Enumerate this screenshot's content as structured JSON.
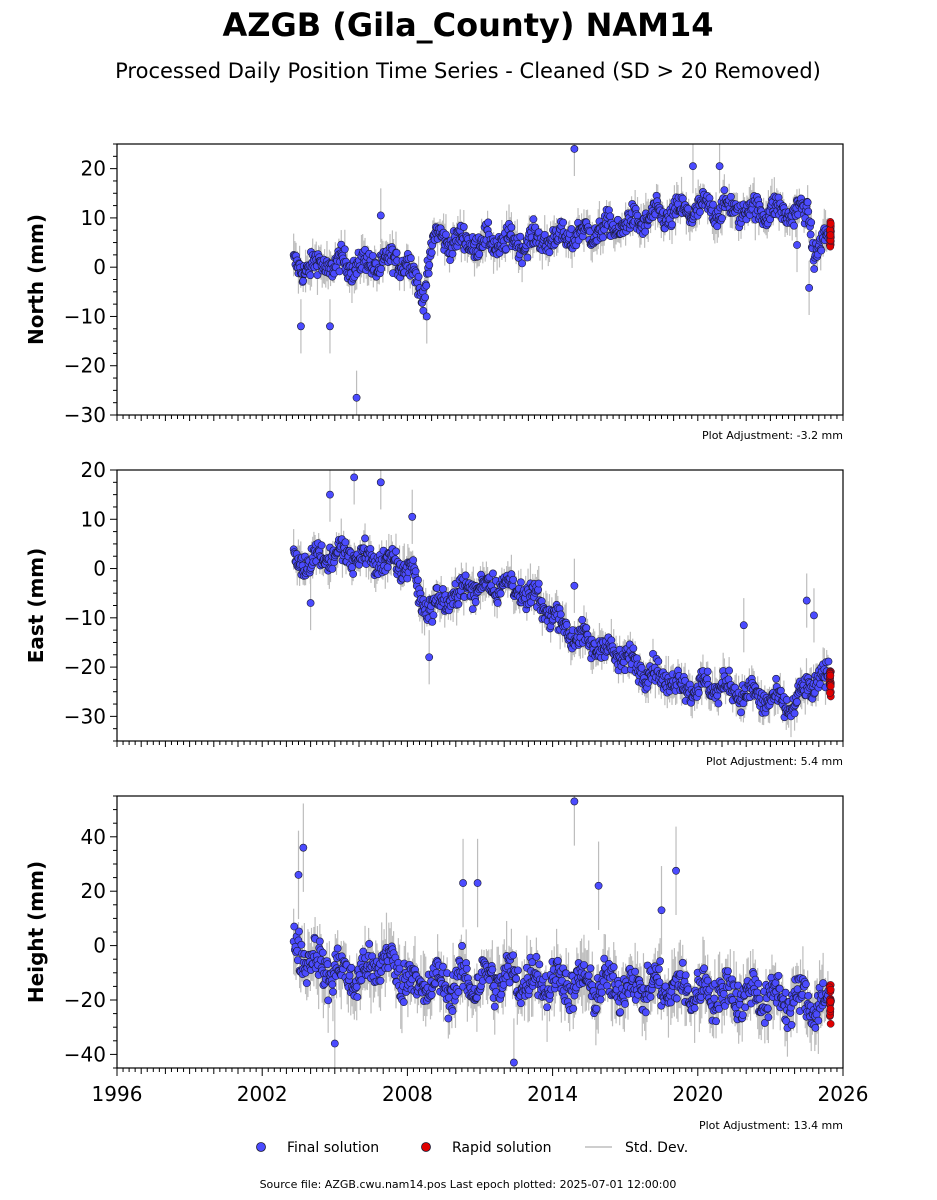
{
  "title": "AZGB (Gila_County) NAM14",
  "subtitle": "Processed Daily Position Time Series - Cleaned (SD > 20 Removed)",
  "source_note": "Source file: AZGB.cwu.nam14.pos  Last epoch plotted: 2025-07-01 12:00:00",
  "legend": {
    "final": "Final solution",
    "rapid": "Rapid solution",
    "std": "Std. Dev."
  },
  "colors": {
    "final": "#4b4bff",
    "rapid": "#e00000",
    "std": "#bdbdbd",
    "edge": "#1a1a33"
  },
  "chart_data": [
    {
      "type": "scatter",
      "ylabel": "North (mm)",
      "ylim": [
        -30,
        25
      ],
      "yticks": [
        -30,
        -20,
        -10,
        0,
        10,
        20
      ],
      "xlim": [
        1996,
        2026
      ],
      "adjustment": "Plot Adjustment: -3.2 mm",
      "series": [
        {
          "name": "Final solution",
          "segments": [
            {
              "x": [
                2003.3,
                2005.0,
                2006.5,
                2008.0,
                2008.6,
                2009.1,
                2010.5,
                2012.5,
                2014.5,
                2016.5,
                2018.5,
                2020.5,
                2022.5,
                2024.6,
                2024.8,
                2025.4
              ],
              "y": [
                0.0,
                0.5,
                0.5,
                1.5,
                -6.0,
                6.0,
                5.0,
                5.0,
                6.0,
                8.0,
                10.5,
                12.0,
                11.5,
                11.0,
                3.0,
                6.0
              ]
            }
          ],
          "noise": 2.2
        },
        {
          "name": "Rapid solution",
          "x": [
            2025.45,
            2025.5
          ],
          "y": [
            7.0,
            7.0
          ],
          "noise": 1.2
        }
      ],
      "outliers": [
        [
          2005.9,
          -26.5
        ],
        [
          2014.9,
          24.0
        ],
        [
          2003.6,
          -12.0
        ],
        [
          2004.8,
          -12.0
        ],
        [
          2006.9,
          10.5
        ],
        [
          2019.8,
          20.5
        ],
        [
          2020.9,
          20.5
        ],
        [
          2024.1,
          4.5
        ],
        [
          2024.6,
          -4.2
        ],
        [
          2008.8,
          -10.0
        ]
      ]
    },
    {
      "type": "scatter",
      "ylabel": "East (mm)",
      "ylim": [
        -35,
        20
      ],
      "yticks": [
        -30,
        -20,
        -10,
        0,
        10,
        20
      ],
      "xlim": [
        1996,
        2026
      ],
      "adjustment": "Plot Adjustment: 5.4 mm",
      "series": [
        {
          "name": "Final solution",
          "segments": [
            {
              "x": [
                2003.3,
                2005.0,
                2006.5,
                2008.2,
                2008.5,
                2009.0,
                2010.5,
                2012.0,
                2013.5,
                2015.0,
                2016.5,
                2018.0,
                2019.5,
                2021.0,
                2022.5,
                2024.0,
                2024.5,
                2025.4
              ],
              "y": [
                1.0,
                3.0,
                2.0,
                0.0,
                -6.0,
                -8.0,
                -4.0,
                -3.0,
                -7.0,
                -14.0,
                -17.0,
                -21.0,
                -24.0,
                -24.0,
                -26.0,
                -28.0,
                -24.0,
                -22.0
              ]
            }
          ],
          "noise": 2.2
        },
        {
          "name": "Rapid solution",
          "x": [
            2025.45,
            2025.5
          ],
          "y": [
            -23.0,
            -23.0
          ],
          "noise": 1.2
        }
      ],
      "outliers": [
        [
          2006.9,
          17.5
        ],
        [
          2005.8,
          18.5
        ],
        [
          2004.8,
          15.0
        ],
        [
          2008.2,
          10.5
        ],
        [
          2008.9,
          -18.0
        ],
        [
          2014.9,
          -3.5
        ],
        [
          2021.9,
          -11.5
        ],
        [
          2024.5,
          -6.5
        ],
        [
          2024.8,
          -9.5
        ],
        [
          2004.0,
          -7.0
        ]
      ]
    },
    {
      "type": "scatter",
      "ylabel": "Height (mm)",
      "ylim": [
        -45,
        55
      ],
      "yticks": [
        -40,
        -20,
        0,
        20,
        40
      ],
      "xlim": [
        1996,
        2026
      ],
      "xticks": [
        1996,
        2002,
        2008,
        2014,
        2020,
        2026
      ],
      "adjustment": "Plot Adjustment: 13.4 mm",
      "series": [
        {
          "name": "Final solution",
          "segments": [
            {
              "x": [
                2003.3,
                2004.5,
                2006.0,
                2007.0,
                2008.5,
                2010.0,
                2012.0,
                2014.0,
                2016.0,
                2018.0,
                2020.0,
                2022.0,
                2024.0,
                2025.4
              ],
              "y": [
                0.0,
                -8.0,
                -12.0,
                -5.0,
                -15.0,
                -14.0,
                -12.0,
                -13.0,
                -15.0,
                -15.0,
                -17.0,
                -18.0,
                -20.0,
                -22.0
              ]
            }
          ],
          "noise": 6.5
        },
        {
          "name": "Rapid solution",
          "x": [
            2025.45,
            2025.5
          ],
          "y": [
            -20.0,
            -20.0
          ],
          "noise": 4.0
        }
      ],
      "outliers": [
        [
          2014.9,
          53.0
        ],
        [
          2003.7,
          36.0
        ],
        [
          2010.3,
          23.0
        ],
        [
          2010.9,
          23.0
        ],
        [
          2015.9,
          22.0
        ],
        [
          2019.1,
          27.5
        ],
        [
          2012.4,
          -43.0
        ],
        [
          2005.0,
          -36.0
        ],
        [
          2003.5,
          26.0
        ],
        [
          2018.5,
          13.0
        ]
      ]
    }
  ]
}
